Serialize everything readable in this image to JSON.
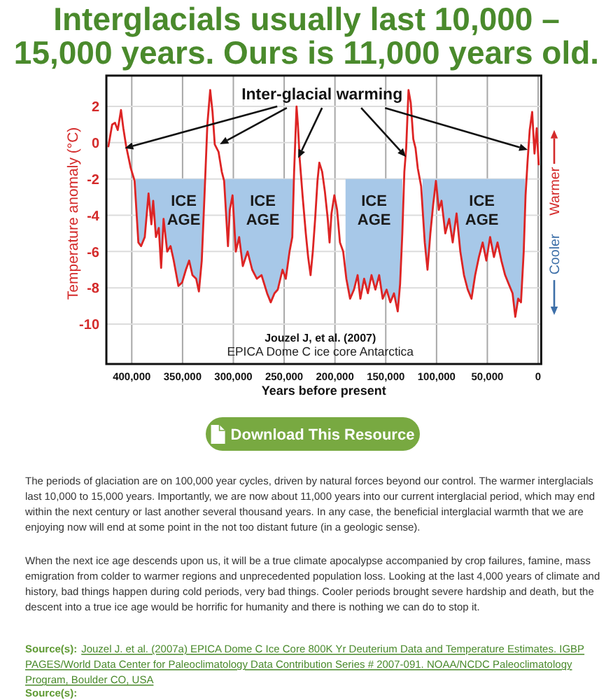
{
  "chart_data": {
    "type": "line",
    "title": "Interglacials usually last 10,000 – 15,000 years. Ours is 11,000 years old.",
    "xlabel": "Years before present",
    "ylabel": "Temperature anomaly (°C)",
    "x": [
      423000,
      419300,
      416500,
      413800,
      410600,
      408300,
      405500,
      401000,
      397200,
      393500,
      390800,
      387200,
      383500,
      380700,
      378900,
      376200,
      373400,
      371100,
      368700,
      365100,
      361800,
      358700,
      354100,
      350400,
      346700,
      343500,
      340300,
      336600,
      333900,
      331100,
      328400,
      325600,
      322800,
      320500,
      318300,
      314600,
      311400,
      309100,
      305300,
      303500,
      300800,
      297600,
      294300,
      290700,
      286000,
      281500,
      276900,
      272300,
      266800,
      263200,
      259500,
      256300,
      251600,
      248400,
      244700,
      242000,
      240200,
      237800,
      236500,
      234700,
      231900,
      228700,
      226400,
      224000,
      221800,
      219500,
      217200,
      215400,
      212600,
      209900,
      207100,
      205300,
      203400,
      200600,
      197900,
      195100,
      191900,
      188800,
      185100,
      181300,
      177700,
      175000,
      171300,
      167600,
      164000,
      160200,
      156500,
      153000,
      149200,
      145500,
      141900,
      138200,
      135900,
      133700,
      131700,
      129900,
      127600,
      125400,
      122900,
      120700,
      118500,
      115200,
      111600,
      108900,
      106100,
      103300,
      100600,
      97800,
      95100,
      91400,
      87600,
      84100,
      80300,
      76600,
      73000,
      69300,
      65600,
      62000,
      58300,
      54600,
      51000,
      47300,
      43500,
      40000,
      36200,
      32500,
      28900,
      25200,
      22500,
      19700,
      16900,
      14200,
      12400,
      10500,
      8300,
      5900,
      3600,
      1400,
      -500
    ],
    "series": [
      {
        "color": "#dd2424",
        "values": [
          -0.2,
          1.0,
          1.1,
          0.7,
          1.8,
          0.8,
          -0.2,
          -1.4,
          -2.1,
          -5.5,
          -5.7,
          -5.2,
          -2.8,
          -4.5,
          -3.2,
          -5.2,
          -4.7,
          -6.9,
          -4.2,
          -6.0,
          -5.7,
          -6.5,
          -7.9,
          -7.7,
          -7.0,
          -6.5,
          -7.3,
          -7.5,
          -8.2,
          -6.5,
          -2.9,
          1.0,
          2.9,
          1.7,
          -0.1,
          -0.5,
          -1.6,
          -2.1,
          -5.7,
          -3.7,
          -2.9,
          -6.0,
          -5.2,
          -6.8,
          -6.0,
          -7.0,
          -7.5,
          -7.3,
          -8.3,
          -8.8,
          -8.3,
          -8.1,
          -7.0,
          -7.5,
          -6.0,
          -5.2,
          -1.6,
          2.0,
          1.0,
          -0.9,
          -2.9,
          -5.0,
          -6.3,
          -7.3,
          -6.0,
          -4.2,
          -2.1,
          -1.1,
          -1.6,
          -2.7,
          -4.2,
          -5.5,
          -3.9,
          -2.9,
          -3.7,
          -5.5,
          -6.0,
          -7.5,
          -8.6,
          -8.1,
          -7.3,
          -8.6,
          -7.5,
          -8.3,
          -7.3,
          -8.1,
          -7.3,
          -8.6,
          -8.1,
          -8.8,
          -8.3,
          -9.3,
          -7.8,
          -5.0,
          -1.6,
          -0.3,
          2.9,
          2.2,
          0.2,
          -0.3,
          -1.4,
          -2.4,
          -5.5,
          -7.0,
          -5.0,
          -3.4,
          -2.1,
          -3.7,
          -3.2,
          -5.0,
          -4.2,
          -5.5,
          -3.9,
          -6.0,
          -7.3,
          -8.1,
          -8.6,
          -7.3,
          -6.3,
          -5.5,
          -6.5,
          -5.2,
          -6.3,
          -5.5,
          -6.5,
          -7.3,
          -7.8,
          -8.3,
          -9.6,
          -8.6,
          -8.8,
          -6.0,
          -2.9,
          -1.1,
          0.7,
          1.7,
          -0.6,
          0.8,
          -1.2
        ]
      }
    ],
    "xlim": [
      425000,
      -3000
    ],
    "xticks": [
      {
        "value": 400000,
        "label": "400,000"
      },
      {
        "value": 350000,
        "label": "350,000"
      },
      {
        "value": 300000,
        "label": "300,000"
      },
      {
        "value": 250000,
        "label": "250,000"
      },
      {
        "value": 200000,
        "label": "200,000"
      },
      {
        "value": 150000,
        "label": "150,000"
      },
      {
        "value": 100000,
        "label": "100,000"
      },
      {
        "value": 50000,
        "label": "50,000"
      },
      0
    ],
    "ylim": [
      -12.2,
      3.7
    ],
    "yticks": [
      2,
      0,
      -2,
      -4,
      -6,
      -8,
      -10
    ],
    "grid": true,
    "bands": [
      {
        "axis": "x",
        "from": 396300,
        "to": 327400,
        "label": "ICE AGE",
        "color": "#a7c8e8"
      },
      {
        "axis": "x",
        "from": 313600,
        "to": 241100,
        "label": "ICE AGE",
        "color": "#a7c8e8"
      },
      {
        "axis": "x",
        "from": 189600,
        "to": 133700,
        "label": "ICE AGE",
        "color": "#a7c8e8"
      },
      {
        "axis": "x",
        "from": 113800,
        "to": 12800,
        "label": "ICE AGE",
        "color": "#a7c8e8"
      }
    ],
    "annotations": [
      {
        "text": "Inter-glacial warming",
        "x": 406900,
        "y": -0.3
      },
      "Jouzel J, et al. (2007)",
      "EPICA Dome C ice core Antarctica",
      "Warmer",
      "Cooler",
      "Download This Resource",
      "The periods of glaciation are on 100,000 year cycles, driven by natural forces beyond our control. The warmer interglacials last 10,000 to 15,000 years. Importantly, we are now about 11,000 years into our current interglacial period, which may end within the next century or last another several thousand years. In any case, the beneficial interglacial warmth that we are enjoying now will end at some point in the not too distant future (in a geologic sense).",
      "When the next ice age descends upon us, it will be a true climate apocalypse accompanied by crop failures, famine, mass emigration from colder to warmer regions and unprecedented population loss. Looking at the last 4,000 years of climate and history, bad things happen during cold periods, very bad things. Cooler periods brought severe hardship and death, but the descent into a true ice age would be horrific for humanity and there is nothing we can do to stop it.",
      "Source(s): Jouzel J. et al. (2007a) EPICA Dome C Ice Core 800K Yr Deuterium Data and Temperature Estimates. IGBP PAGES/World Data Center for Paleoclimatology Data Contribution Series # 2007-091. NOAA/NCDC Paleoclimatology Program, Boulder CO, USA",
      "Source(s):"
    ]
  }
}
